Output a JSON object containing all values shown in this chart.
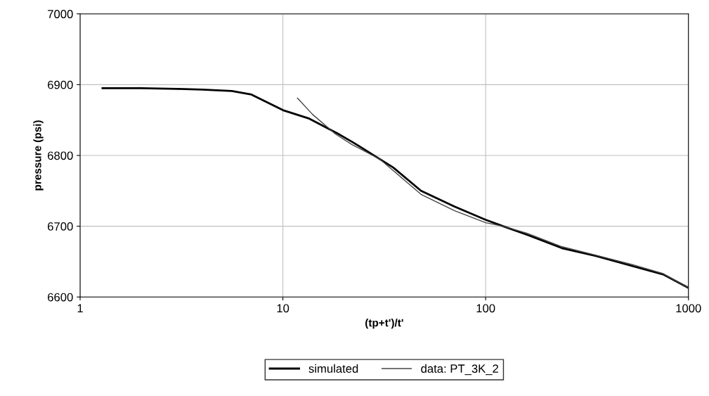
{
  "chart_data": {
    "type": "line",
    "xlabel": "(tp+t')/t'",
    "ylabel": "pressure (psi)",
    "log": "x",
    "xlim": [
      1,
      1000
    ],
    "xticks": [
      1,
      10,
      100,
      1000
    ],
    "ylim": [
      6600,
      7000
    ],
    "yticks": [
      6600,
      6700,
      6800,
      6900,
      7000
    ],
    "grid": true,
    "legend": "bottom",
    "series": [
      {
        "name": "simulated",
        "color": "#000000",
        "line_style": "solid",
        "x": [
          1.29,
          2,
          3,
          4,
          5.6,
          7,
          10,
          13.5,
          18.6,
          22,
          35,
          48,
          70,
          100,
          122,
          160,
          238,
          350,
          525,
          750,
          1000
        ],
        "values": [
          6895,
          6895,
          6894,
          6893,
          6891,
          6886,
          6864,
          6852,
          6831,
          6819,
          6783,
          6750,
          6728,
          6709,
          6700,
          6688,
          6669,
          6658,
          6644,
          6632,
          6613
        ]
      },
      {
        "name": "data: PT_3K_2",
        "color": "#444444",
        "line_style": "solid",
        "x": [
          11.8,
          14,
          18.2,
          22,
          30,
          48,
          70,
          100,
          122,
          160,
          238,
          350,
          525,
          750,
          1000
        ],
        "values": [
          6881,
          6858,
          6830,
          6815,
          6795,
          6745,
          6722,
          6705,
          6700,
          6690,
          6671,
          6659,
          6646,
          6633,
          6613
        ]
      }
    ]
  }
}
